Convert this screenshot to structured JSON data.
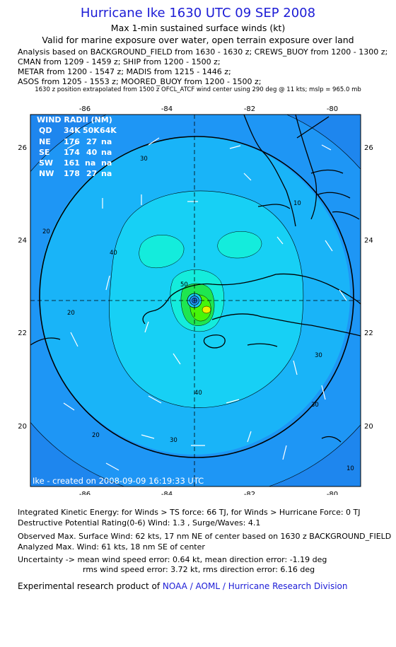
{
  "header": {
    "title": "Hurricane Ike 1630 UTC 09 SEP 2008",
    "subtitle": "Max 1-min sustained surface winds (kt)",
    "valid_line": "Valid for marine exposure over water, open terrain exposure over land",
    "analysis_lines": [
      "Analysis based on  BACKGROUND_FIELD from 1630 - 1630 z;  CREWS_BUOY from 1200 - 1300 z;",
      "CMAN from 1209 - 1459 z;  SHIP from 1200 - 1500 z;",
      "METAR from 1200 - 1547 z;  MADIS from 1215 - 1446 z;",
      "ASOS from 1205 - 1553 z;  MOORED_BUOY from 1200 - 1500 z;"
    ],
    "position_note": "1630 z position extrapolated from 1500 z OFCL_ATCF wind center using 290 deg @ 11 kts; mslp = 965.0 mb"
  },
  "map": {
    "lon_ticks": [
      "-86",
      "-84",
      "-82",
      "-80"
    ],
    "lat_ticks": [
      "26",
      "24",
      "22",
      "20"
    ],
    "wind_radii": {
      "title": "WIND RADII (NM)",
      "header": [
        "QD",
        "34K",
        "50K",
        "64K"
      ],
      "rows": [
        [
          "NE",
          "176",
          "27",
          "na"
        ],
        [
          "SE",
          "174",
          "40",
          "na"
        ],
        [
          "SW",
          "161",
          "na",
          "na"
        ],
        [
          "NW",
          "178",
          "27",
          "na"
        ]
      ]
    },
    "contour_labels": [
      "30",
      "40",
      "50",
      "20",
      "10",
      "40",
      "30",
      "20",
      "30",
      "20",
      "30",
      "10"
    ],
    "created_label": "Ike - created on 2008-09-09 16:19:33 UTC",
    "colors": {
      "ocean_outer": "#1e78e6",
      "band_10": "#1e96f5",
      "band_20": "#19b4f8",
      "band_30": "#17d0f5",
      "band_40": "#14ecdc",
      "band_50": "#1ee650",
      "band_60": "#46f50a",
      "band_64": "#f0f000",
      "coast": "#000000"
    }
  },
  "chart_data": {
    "type": "contour",
    "title": "Max 1-min sustained surface winds (kt)",
    "xlabel": "",
    "ylabel": "",
    "x_range": [
      -87,
      -79.5
    ],
    "y_range": [
      18.8,
      26.8
    ],
    "center": {
      "lon": -83.0,
      "lat": 22.7
    },
    "contour_levels_kt": [
      10,
      20,
      30,
      40,
      50,
      60
    ],
    "max_observed_wind_kt": 62,
    "max_analyzed_wind_kt": 61
  },
  "stats": {
    "ike_line": "Integrated Kinetic Energy:  for Winds > TS force: 66 TJ,  for Winds > Hurricane Force: 0 TJ",
    "dpr_line": "Destructive Potential Rating(0-6)   Wind: 1.3 , Surge/Waves: 4.1",
    "observed_line": "Observed Max. Surface Wind: 62 kts, 17 nm NE of center based on 1630 z BACKGROUND_FIELD",
    "analyzed_line": "Analyzed Max. Wind: 61 kts, 18 nm SE of center",
    "uncertainty_line1": "Uncertainty -> mean wind speed error: 0.64 kt,   mean direction error:  -1.19 deg",
    "uncertainty_line2": "rms wind speed error: 3.72 kt,   rms direction error: 6.16 deg"
  },
  "credit": {
    "prefix": "Experimental research product of ",
    "link": "NOAA / AOML / Hurricane Research Division"
  }
}
